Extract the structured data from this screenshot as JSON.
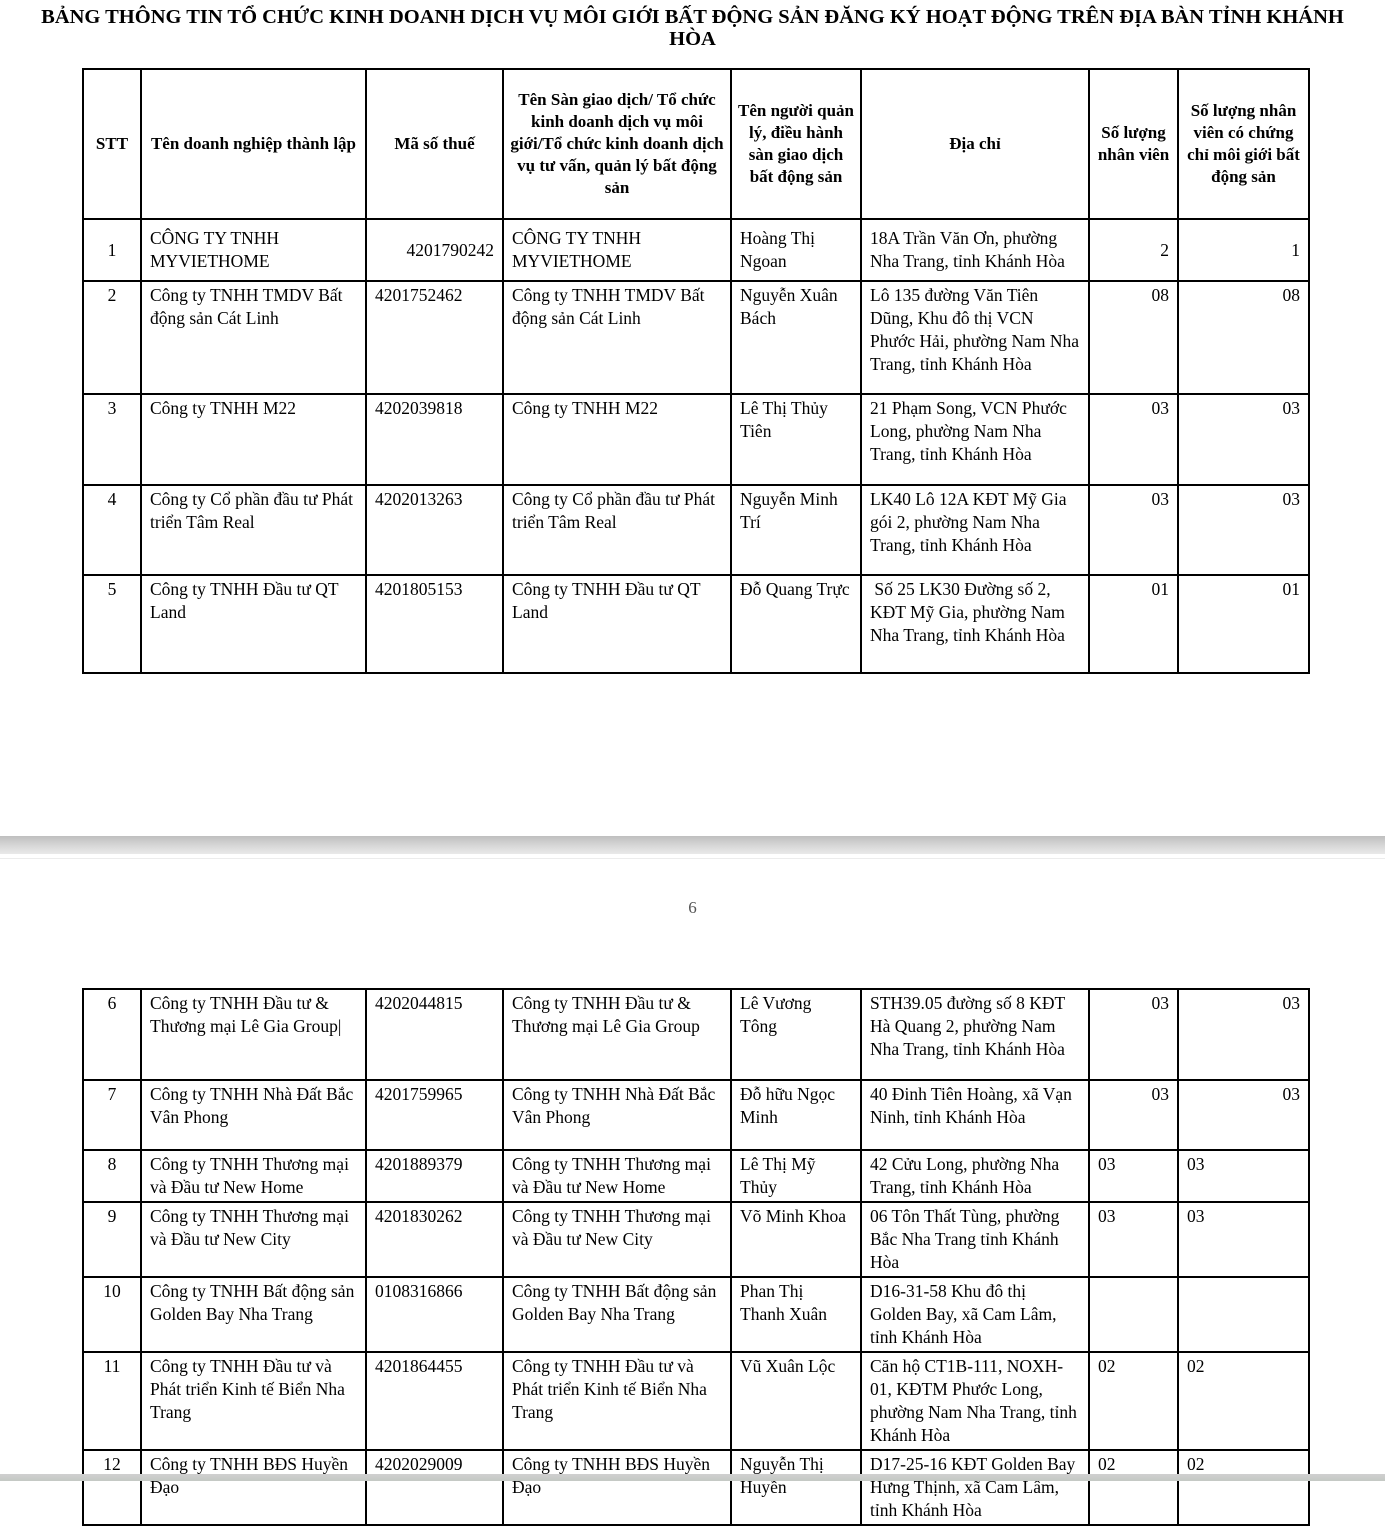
{
  "document": {
    "title": "BẢNG THÔNG TIN TỔ CHỨC KINH DOANH DỊCH VỤ MÔI GIỚI BẤT ĐỘNG SẢN ĐĂNG KÝ HOẠT ĐỘNG TRÊN ĐỊA BÀN TỈNH KHÁNH HÒA",
    "page_number": "6"
  },
  "table": {
    "headers": {
      "stt": "STT",
      "company": "Tên doanh nghiệp thành lập",
      "tax": "Mã số thuế",
      "org": "Tên Sàn giao dịch/ Tổ chức kinh doanh dịch vụ môi giới/Tổ chức kinh doanh dịch vụ tư vấn, quản lý bất động sản",
      "manager": "Tên người quản lý, điều hành sàn giao dịch bất động sản",
      "address": "Địa chỉ",
      "staff": "Số lượng nhân viên",
      "certified": "Số lượng nhân viên có chứng chỉ môi giới bất động sản"
    },
    "page5_rows": [
      {
        "stt": "1",
        "company": "CÔNG TY TNHH MYVIETHOME",
        "tax": "4201790242",
        "org": "CÔNG TY TNHH MYVIETHOME",
        "manager": "Hoàng Thị Ngoan",
        "address": "18A Trần Văn Ơn, phường Nha Trang, tỉnh Khánh Hòa",
        "staff": "2",
        "certified": "1",
        "tax_align": "right",
        "num_align": "right",
        "valign": "middle"
      },
      {
        "stt": "2",
        "company": "Công ty TNHH TMDV Bất động sản Cát Linh",
        "tax": "4201752462",
        "org": "Công ty TNHH TMDV Bất động sản Cát Linh",
        "manager": "Nguyễn Xuân Bách",
        "address": "Lô 135 đường Văn Tiên Dũng, Khu đô thị VCN Phước Hải, phường Nam Nha Trang, tỉnh Khánh Hòa",
        "staff": "08",
        "certified": "08",
        "tax_align": "left",
        "num_align": "right",
        "valign": "top"
      },
      {
        "stt": "3",
        "company": "Công ty TNHH M22",
        "tax": "4202039818",
        "org": "Công ty TNHH M22",
        "manager": "Lê Thị Thủy Tiên",
        "address": "21 Phạm Song, VCN Phước Long, phường Nam Nha Trang, tỉnh Khánh Hòa",
        "staff": "03",
        "certified": "03",
        "tax_align": "left",
        "num_align": "right",
        "valign": "top"
      },
      {
        "stt": "4",
        "company": "Công ty Cổ phần đầu tư Phát triển Tâm Real",
        "tax": "4202013263",
        "org": "Công ty Cổ phần đầu tư Phát triển Tâm Real",
        "manager": "Nguyễn Minh Trí",
        "address": "LK40 Lô 12A KĐT Mỹ Gia gói 2, phường Nam Nha Trang, tỉnh Khánh Hòa",
        "staff": "03",
        "certified": "03",
        "tax_align": "left",
        "num_align": "right",
        "valign": "top"
      },
      {
        "stt": "5",
        "company": "Công ty TNHH Đầu tư QT Land",
        "tax": "4201805153",
        "org": "Công ty TNHH Đầu tư QT Land",
        "manager": "Đỗ Quang Trực",
        "address": " Số 25 LK30 Đường số 2, KĐT Mỹ Gia, phường Nam Nha Trang, tỉnh Khánh Hòa",
        "staff": "01",
        "certified": "01",
        "tax_align": "left",
        "num_align": "right",
        "valign": "top"
      }
    ],
    "page6_rows": [
      {
        "stt": "6",
        "company": "Công ty TNHH Đầu tư & Thương mại Lê Gia Group|",
        "tax": "4202044815",
        "org": "Công ty TNHH Đầu tư & Thương mại Lê Gia Group",
        "manager": "Lê Vương Tông",
        "address": "STH39.05 đường số 8 KĐT Hà Quang 2, phường Nam Nha Trang, tỉnh Khánh Hòa",
        "staff": "03",
        "certified": "03",
        "tax_align": "left",
        "num_align": "right",
        "valign": "top"
      },
      {
        "stt": "7",
        "company": "Công ty TNHH Nhà Đất Bắc Vân Phong",
        "tax": "4201759965",
        "org": "Công ty TNHH Nhà Đất Bắc Vân Phong",
        "manager": "Đỗ hữu Ngọc Minh",
        "address": "40 Đinh Tiên Hoàng, xã Vạn Ninh, tỉnh Khánh Hòa",
        "staff": "03",
        "certified": "03",
        "tax_align": "left",
        "num_align": "right",
        "valign": "top"
      },
      {
        "stt": "8",
        "company": "Công ty TNHH Thương mại và Đầu tư New Home",
        "tax": "4201889379",
        "org": "Công ty TNHH Thương mại và Đầu tư New Home",
        "manager": "Lê Thị Mỹ Thủy",
        "address": "42 Cửu Long, phường Nha Trang, tỉnh Khánh Hòa",
        "staff": "03",
        "certified": "03",
        "tax_align": "left",
        "num_align": "left",
        "valign": "top"
      },
      {
        "stt": "9",
        "company": "Công ty TNHH Thương mại và Đầu tư New City",
        "tax": "4201830262",
        "org": "Công ty TNHH Thương mại và Đầu tư New City",
        "manager": "Võ Minh Khoa",
        "address": "06 Tôn Thất Tùng, phường Bắc Nha Trang tỉnh Khánh Hòa",
        "staff": "03",
        "certified": "03",
        "tax_align": "left",
        "num_align": "left",
        "valign": "top"
      },
      {
        "stt": "10",
        "company": "Công ty TNHH Bất động sản Golden Bay Nha Trang",
        "tax": "0108316866",
        "org": "Công ty TNHH Bất động sản Golden Bay Nha Trang",
        "manager": "Phan Thị Thanh Xuân",
        "address": "D16-31-58 Khu đô thị Golden Bay, xã Cam Lâm, tỉnh Khánh Hòa",
        "staff": "",
        "certified": "",
        "tax_align": "left",
        "num_align": "left",
        "valign": "top"
      },
      {
        "stt": "11",
        "company": "Công ty TNHH Đầu tư và Phát triển Kinh tế Biển Nha Trang",
        "tax": "4201864455",
        "org": "Công ty TNHH Đầu tư và Phát triển Kinh tế Biển Nha Trang",
        "manager": "Vũ Xuân Lộc",
        "address": "Căn hộ CT1B-111, NOXH-01, KĐTM Phước Long, phường Nam Nha Trang, tỉnh Khánh Hòa",
        "staff": "02",
        "certified": "02",
        "tax_align": "left",
        "num_align": "left",
        "valign": "top"
      },
      {
        "stt": "12",
        "company": "Công ty TNHH BĐS Huyền Đạo",
        "tax": "4202029009",
        "org": "Công ty TNHH BĐS Huyền Đạo",
        "manager": "Nguyễn Thị Huyền",
        "address": "D17-25-16 KĐT Golden Bay Hưng Thịnh, xã Cam Lâm, tỉnh Khánh Hòa",
        "staff": "02",
        "certified": "02",
        "tax_align": "left",
        "num_align": "left",
        "valign": "top"
      }
    ]
  }
}
